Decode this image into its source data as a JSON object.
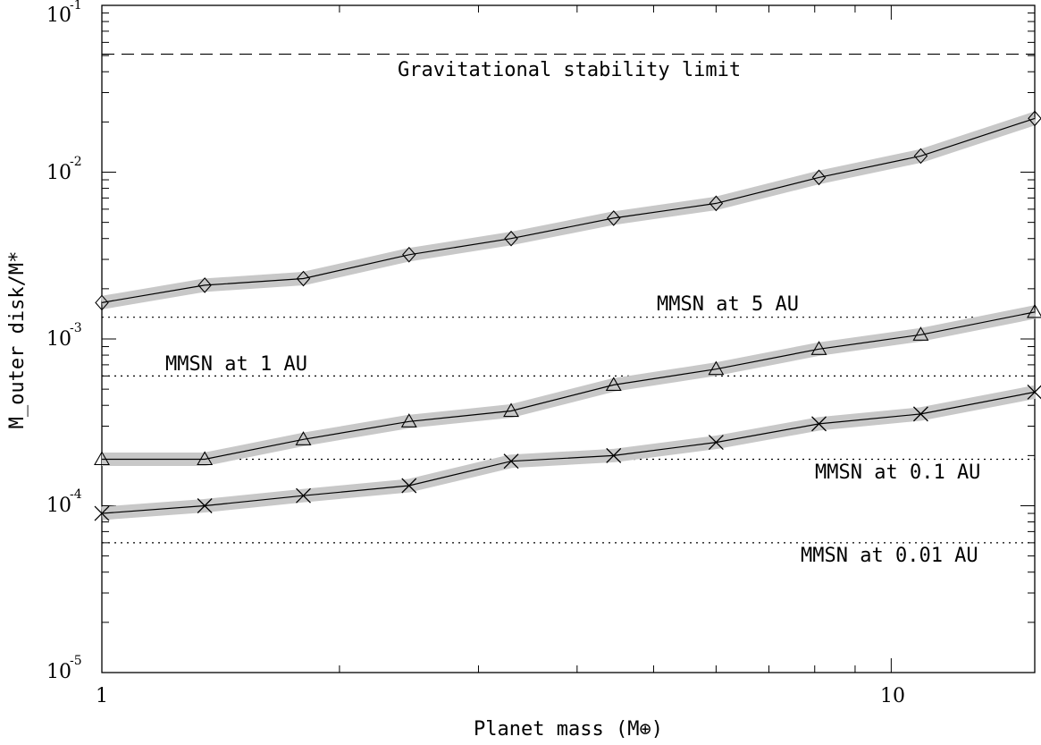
{
  "chart_data": {
    "type": "line",
    "xscale": "log",
    "yscale": "log",
    "xlim": [
      1,
      15.2
    ],
    "ylim": [
      1e-05,
      0.1
    ],
    "xlabel": "Planet mass (M⊕)",
    "ylabel": "M_outer disk/M*",
    "x_tick_labels": [
      "1",
      "10"
    ],
    "y_tick_labels": [
      {
        "base": "10",
        "exp": "-5"
      },
      {
        "base": "10",
        "exp": "-4"
      },
      {
        "base": "10",
        "exp": "-3"
      },
      {
        "base": "10",
        "exp": "-2"
      },
      {
        "base": "10",
        "exp": "-1"
      }
    ],
    "x": [
      1.0,
      1.35,
      1.8,
      2.45,
      3.3,
      4.45,
      6.0,
      8.1,
      10.9,
      15.2
    ],
    "series": [
      {
        "marker": "diamond",
        "values": [
          0.00165,
          0.0021,
          0.0023,
          0.0032,
          0.004,
          0.0053,
          0.0065,
          0.0093,
          0.0125,
          0.021
        ]
      },
      {
        "marker": "triangle",
        "values": [
          0.00019,
          0.00019,
          0.00025,
          0.00032,
          0.00037,
          0.00053,
          0.00066,
          0.00087,
          0.00106,
          0.00145
        ]
      },
      {
        "marker": "x",
        "values": [
          9e-05,
          0.0001,
          0.000115,
          0.000132,
          0.000185,
          0.0002,
          0.00024,
          0.00031,
          0.000355,
          0.00048
        ]
      }
    ],
    "reference_lines": [
      {
        "label": "Gravitational stability limit",
        "value": 0.051,
        "style": "dashed"
      },
      {
        "label": "MMSN at 5 AU",
        "value": 0.00135,
        "style": "dotted"
      },
      {
        "label": "MMSN at 1 AU",
        "value": 0.0006,
        "style": "dotted"
      },
      {
        "label": "MMSN at 0.1 AU",
        "value": 0.00019,
        "style": "dotted"
      },
      {
        "label": "MMSN at 0.01 AU",
        "value": 6e-05,
        "style": "dotted"
      }
    ],
    "colors": {
      "line": "#000000",
      "band": "#c8c8c8"
    }
  }
}
